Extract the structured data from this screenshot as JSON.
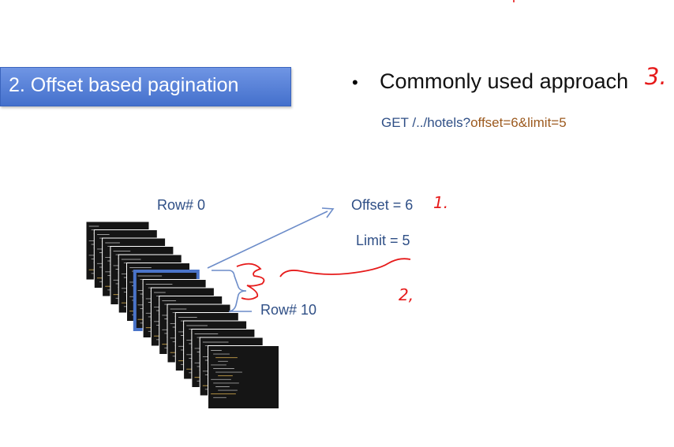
{
  "slide": {
    "title": "2. Offset based pagination",
    "bullet_symbol": "•",
    "bullet": "Commonly used approach",
    "url_prefix": "GET /../hotels?",
    "url_query": "offset=6&limit=5",
    "row_start_label": "Row# 0",
    "row_end_label": "Row# 10",
    "offset_label": "Offset = 6",
    "limit_label": "Limit = 5"
  },
  "annotations": {
    "mark_offset": "1.",
    "mark_limit": "2,",
    "mark_bullet": "3."
  },
  "stack": {
    "sheet_count": 16,
    "highlight_index": 6,
    "highlight_color": "#4a74c9",
    "sheet_color": "#151515",
    "code_color_primary": "#9b9b9b",
    "code_color_accent": "#c8a24a"
  },
  "colors": {
    "label": "#2f4f86",
    "annotation_red": "#e61a1a",
    "arrow": "#6c8cc9"
  }
}
